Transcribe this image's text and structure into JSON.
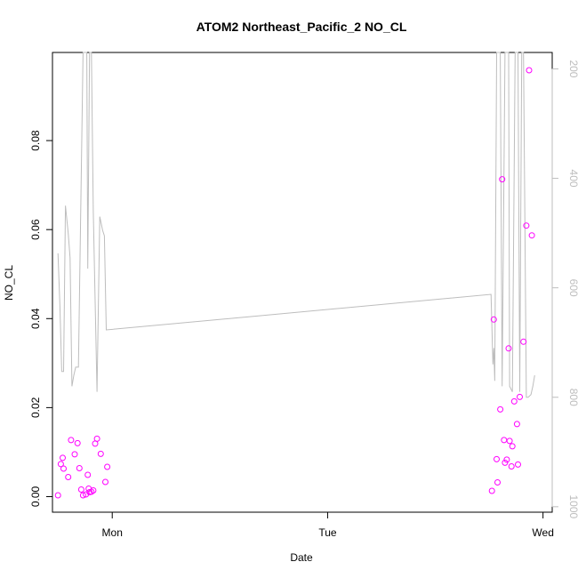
{
  "chart_data": {
    "type": "scatter",
    "title": "ATOM2 Northeast_Pacific_2 NO_CL",
    "xlabel": "Date",
    "ylabel": "NO_CL",
    "x_ticks": [
      {
        "label": "Mon",
        "t": 0
      },
      {
        "label": "Tue",
        "t": 1
      },
      {
        "label": "Wed",
        "t": 2
      }
    ],
    "xlim": [
      -0.2775,
      2.0427
    ],
    "ylim": [
      -0.0035,
      0.0998
    ],
    "y_ticks": [
      0.0,
      0.02,
      0.04,
      0.06,
      0.08
    ],
    "y_tick_labels": [
      "0.00",
      "0.02",
      "0.04",
      "0.06",
      "0.08"
    ],
    "right_axis": {
      "ticks": [
        200,
        400,
        600,
        800,
        1000
      ],
      "tick_labels": [
        "200",
        "400",
        "600",
        "800",
        "1000"
      ],
      "ylim": [
        1010,
        170
      ],
      "color": "#bdbdbd"
    },
    "series": [
      {
        "kind": "points",
        "color": "#ff00ff",
        "points": [
          [
            -0.2517,
            0.0003
          ],
          [
            -0.2388,
            0.0073
          ],
          [
            -0.2302,
            0.0087
          ],
          [
            -0.2259,
            0.0063
          ],
          [
            -0.2043,
            0.0044
          ],
          [
            -0.1914,
            0.0127
          ],
          [
            -0.1741,
            0.0095
          ],
          [
            -0.1612,
            0.012
          ],
          [
            -0.1526,
            0.0064
          ],
          [
            -0.1439,
            0.0016
          ],
          [
            -0.1353,
            0.0003
          ],
          [
            -0.1224,
            0.0005
          ],
          [
            -0.1138,
            0.0049
          ],
          [
            -0.1095,
            0.0018
          ],
          [
            -0.1052,
            0.001
          ],
          [
            -0.0966,
            0.0011
          ],
          [
            -0.0879,
            0.0014
          ],
          [
            -0.0793,
            0.0119
          ],
          [
            -0.0707,
            0.013
          ],
          [
            -0.0534,
            0.0096
          ],
          [
            -0.0319,
            0.0033
          ],
          [
            -0.0233,
            0.0067
          ],
          [
            1.7629,
            0.0013
          ],
          [
            1.7716,
            0.0398
          ],
          [
            1.7845,
            0.0084
          ],
          [
            1.7888,
            0.0032
          ],
          [
            1.8017,
            0.0196
          ],
          [
            1.8103,
            0.0713
          ],
          [
            1.819,
            0.0127
          ],
          [
            1.8233,
            0.0076
          ],
          [
            1.8319,
            0.0083
          ],
          [
            1.8405,
            0.0333
          ],
          [
            1.8448,
            0.0125
          ],
          [
            1.8535,
            0.0068
          ],
          [
            1.8578,
            0.0113
          ],
          [
            1.8664,
            0.0214
          ],
          [
            1.8793,
            0.0163
          ],
          [
            1.8836,
            0.0072
          ],
          [
            1.8922,
            0.0224
          ],
          [
            1.9095,
            0.0348
          ],
          [
            1.9224,
            0.0609
          ],
          [
            1.9353,
            0.0958
          ],
          [
            1.9483,
            0.0587
          ]
        ]
      },
      {
        "kind": "line",
        "color": "#bdbdbd",
        "axis": "right",
        "points": [
          [
            -0.2517,
            537
          ],
          [
            -0.2431,
            629
          ],
          [
            -0.2345,
            753
          ],
          [
            -0.2259,
            753
          ],
          [
            -0.2172,
            450
          ],
          [
            -0.2043,
            500
          ],
          [
            -0.1957,
            545
          ],
          [
            -0.1871,
            780
          ],
          [
            -0.1784,
            760
          ],
          [
            -0.1698,
            745
          ],
          [
            -0.1569,
            745
          ],
          [
            -0.1353,
            150
          ],
          [
            -0.1181,
            150
          ],
          [
            -0.1138,
            565
          ],
          [
            -0.1052,
            150
          ],
          [
            -0.0966,
            150
          ],
          [
            -0.0879,
            460
          ],
          [
            -0.0707,
            790
          ],
          [
            -0.0578,
            470
          ],
          [
            -0.0448,
            495
          ],
          [
            -0.0362,
            505
          ],
          [
            -0.0276,
            677
          ],
          [
            1.7586,
            612
          ],
          [
            1.7672,
            740
          ],
          [
            1.7716,
            710
          ],
          [
            1.7759,
            770
          ],
          [
            1.7845,
            150
          ],
          [
            1.8017,
            150
          ],
          [
            1.8103,
            780
          ],
          [
            1.8233,
            150
          ],
          [
            1.8405,
            150
          ],
          [
            1.8448,
            780
          ],
          [
            1.8578,
            790
          ],
          [
            1.8707,
            150
          ],
          [
            1.8836,
            150
          ],
          [
            1.8922,
            790
          ],
          [
            1.9009,
            150
          ],
          [
            1.9095,
            150
          ],
          [
            1.9224,
            800
          ],
          [
            1.931,
            800
          ],
          [
            1.944,
            795
          ],
          [
            1.9526,
            780
          ],
          [
            1.9612,
            760
          ]
        ]
      }
    ],
    "grid": false,
    "legend": "none"
  }
}
